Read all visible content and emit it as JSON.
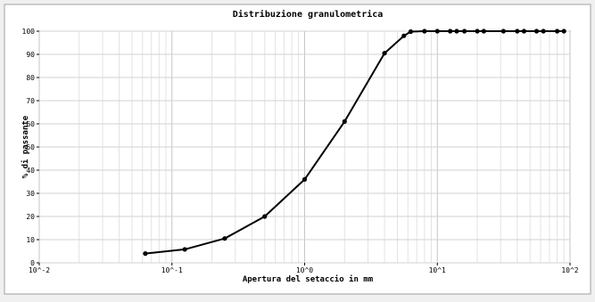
{
  "chart_data": {
    "type": "line",
    "title": "Distribuzione granulometrica",
    "xlabel": "Apertura del setaccio in mm",
    "ylabel": "% di passante",
    "x_scale": "log",
    "xlim": [
      0.01,
      100
    ],
    "ylim": [
      0,
      100
    ],
    "grid": true,
    "x_ticks": [
      0.01,
      0.1,
      1,
      10,
      100
    ],
    "x_tick_labels": [
      "10^-2",
      "10^-1",
      "10^0",
      "10^1",
      "10^2"
    ],
    "y_ticks": [
      0,
      10,
      20,
      30,
      40,
      50,
      60,
      70,
      80,
      90,
      100
    ],
    "y_tick_labels": [
      "0",
      "10",
      "20",
      "30",
      "40",
      "50",
      "60",
      "70",
      "80",
      "90",
      "100"
    ],
    "series": [
      {
        "color": "#000000",
        "x": [
          0.063,
          0.125,
          0.25,
          0.5,
          1,
          2,
          4,
          5.6,
          6.3,
          8,
          10,
          12.5,
          14,
          16,
          20,
          22.4,
          31.5,
          40,
          45,
          56,
          63,
          80,
          90
        ],
        "y": [
          4,
          5.8,
          10.5,
          20,
          36,
          61,
          90.5,
          98,
          99.8,
          100,
          100,
          100,
          100,
          100,
          100,
          100,
          100,
          100,
          100,
          100,
          100,
          100,
          100
        ]
      }
    ]
  }
}
